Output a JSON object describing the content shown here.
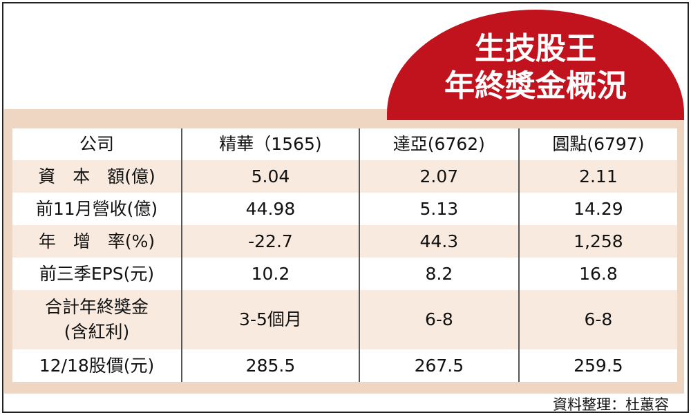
{
  "header": {
    "title_lines": [
      "生技股王",
      "年終獎金概況"
    ]
  },
  "table": {
    "columns": [
      "公司",
      "精華（1565)",
      "達亞(6762)",
      "圓點(6797)"
    ],
    "rows": [
      [
        "資　本　額(億)",
        "5.04",
        "2.07",
        "2.11"
      ],
      [
        "前11月營收(億)",
        "44.98",
        "5.13",
        "14.29"
      ],
      [
        "年　增　率(%)",
        "-22.7",
        "44.3",
        "1,258"
      ],
      [
        "前三季EPS(元)",
        "10.2",
        "8.2",
        "16.8"
      ],
      [
        "合計年終獎金\n(含紅利)",
        "3-5個月",
        "6-8",
        "6-8"
      ],
      [
        "12/18股價(元)",
        "285.5",
        "267.5",
        "259.5"
      ]
    ]
  },
  "source": "資料整理：杜蕙容"
}
